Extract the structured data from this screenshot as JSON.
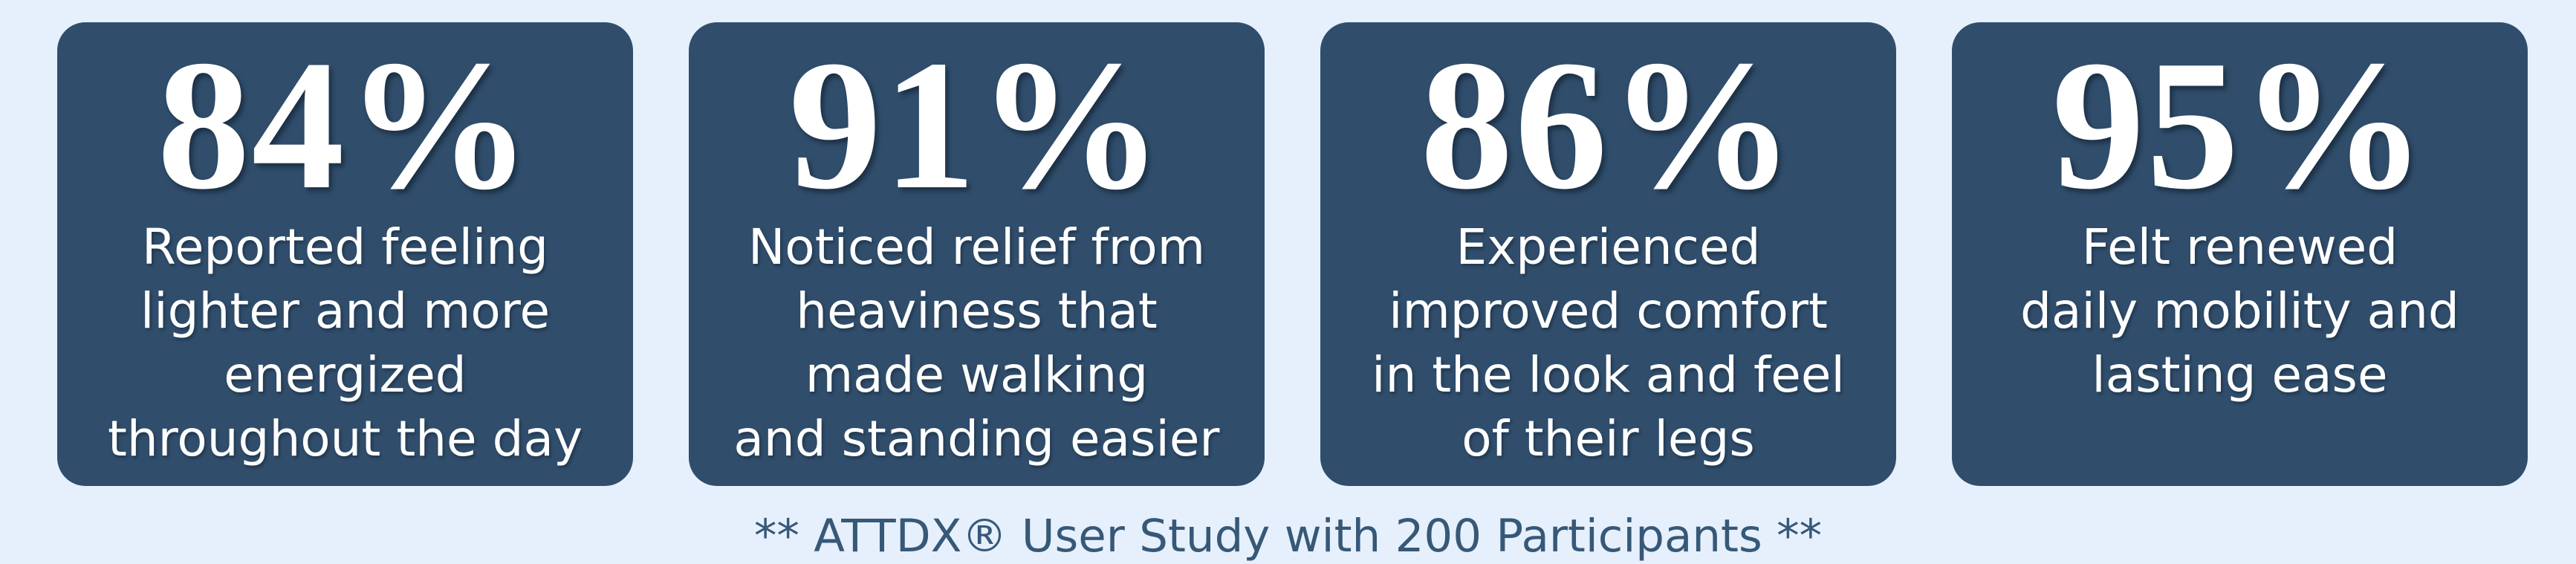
{
  "colors": {
    "page_background": "#E5F0FC",
    "card_background": "#304E6C",
    "stat_text": "#FFFFFF",
    "footer_text": "#375877"
  },
  "cards": [
    {
      "percent": "84%",
      "description": "Reported feeling\nlighter and more\nenergized\nthroughout the day"
    },
    {
      "percent": "91%",
      "description": "Noticed relief from\nheaviness that\nmade walking\nand standing easier"
    },
    {
      "percent": "86%",
      "description": "Experienced\nimproved comfort\nin the look and feel\nof their legs"
    },
    {
      "percent": "95%",
      "description": "Felt renewed\ndaily mobility and\nlasting ease"
    }
  ],
  "footer": {
    "text": "** ATTDX® User Study with 200 Participants **"
  },
  "chart_data": {
    "type": "table",
    "title": "** ATTDX® User Study with 200 Participants **",
    "unit": "%",
    "categories": [
      "Reported feeling lighter and more energized throughout the day",
      "Noticed relief from heaviness that made walking and standing easier",
      "Experienced improved comfort in the look and feel of their legs",
      "Felt renewed daily mobility and lasting ease"
    ],
    "values": [
      84,
      91,
      86,
      95
    ],
    "legend_position": "none",
    "grid": false
  }
}
